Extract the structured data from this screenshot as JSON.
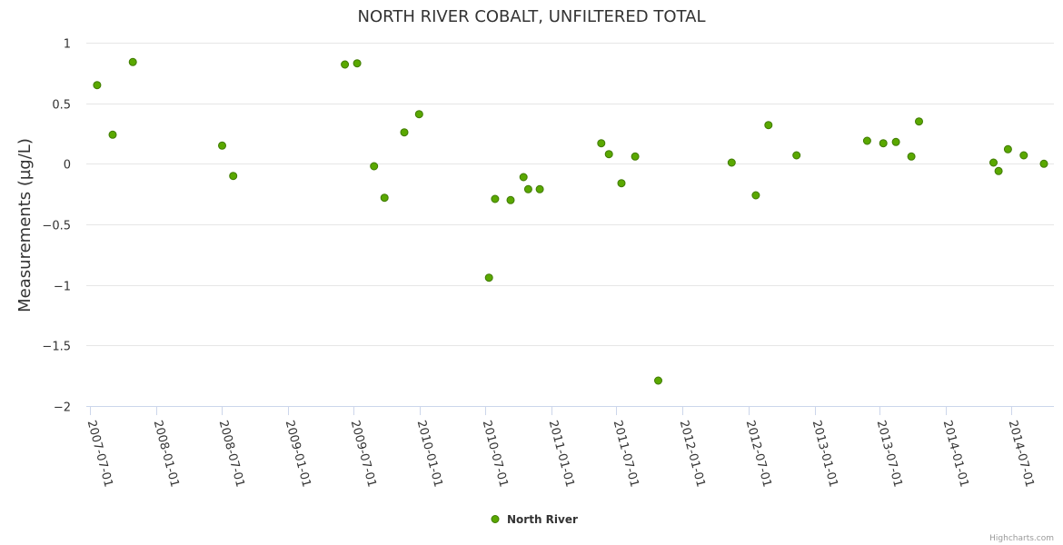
{
  "chart_data": {
    "type": "scatter",
    "title": "NORTH RIVER COBALT, UNFILTERED TOTAL",
    "xlabel": "",
    "ylabel": "Measurements (µg/L)",
    "ylim": [
      -2,
      1
    ],
    "yticks": [
      {
        "value": 1,
        "label": "1"
      },
      {
        "value": 0.5,
        "label": "0.5"
      },
      {
        "value": 0,
        "label": "0"
      },
      {
        "value": -0.5,
        "label": "−0.5"
      },
      {
        "value": -1,
        "label": "−1"
      },
      {
        "value": -1.5,
        "label": "−1.5"
      },
      {
        "value": -2,
        "label": "−2"
      }
    ],
    "xlim": [
      "2007-06-25",
      "2014-09-30"
    ],
    "xticks": [
      {
        "date": "2007-07-01",
        "label": "2007-07-01"
      },
      {
        "date": "2008-01-01",
        "label": "2008-01-01"
      },
      {
        "date": "2008-07-01",
        "label": "2008-07-01"
      },
      {
        "date": "2009-01-01",
        "label": "2009-01-01"
      },
      {
        "date": "2009-07-01",
        "label": "2009-07-01"
      },
      {
        "date": "2010-01-01",
        "label": "2010-01-01"
      },
      {
        "date": "2010-07-01",
        "label": "2010-07-01"
      },
      {
        "date": "2011-01-01",
        "label": "2011-01-01"
      },
      {
        "date": "2011-07-01",
        "label": "2011-07-01"
      },
      {
        "date": "2012-01-01",
        "label": "2012-01-01"
      },
      {
        "date": "2012-07-01",
        "label": "2012-07-01"
      },
      {
        "date": "2013-01-01",
        "label": "2013-01-01"
      },
      {
        "date": "2013-07-01",
        "label": "2013-07-01"
      },
      {
        "date": "2014-01-01",
        "label": "2014-01-01"
      },
      {
        "date": "2014-07-01",
        "label": "2014-07-01"
      }
    ],
    "series": [
      {
        "name": "North River",
        "color": "#5aa800",
        "points": [
          {
            "x": "2007-07-20",
            "y": 0.65
          },
          {
            "x": "2007-09-01",
            "y": 0.24
          },
          {
            "x": "2007-10-27",
            "y": 0.84
          },
          {
            "x": "2008-07-01",
            "y": 0.15
          },
          {
            "x": "2008-08-01",
            "y": -0.1
          },
          {
            "x": "2009-06-07",
            "y": 0.82
          },
          {
            "x": "2009-07-11",
            "y": 0.83
          },
          {
            "x": "2009-08-27",
            "y": -0.02
          },
          {
            "x": "2009-09-25",
            "y": -0.28
          },
          {
            "x": "2009-11-19",
            "y": 0.26
          },
          {
            "x": "2009-12-30",
            "y": 0.41
          },
          {
            "x": "2010-07-12",
            "y": -0.94
          },
          {
            "x": "2010-07-29",
            "y": -0.29
          },
          {
            "x": "2010-09-10",
            "y": -0.3
          },
          {
            "x": "2010-10-16",
            "y": -0.11
          },
          {
            "x": "2010-10-29",
            "y": -0.21
          },
          {
            "x": "2010-11-30",
            "y": -0.21
          },
          {
            "x": "2011-05-20",
            "y": 0.17
          },
          {
            "x": "2011-06-10",
            "y": 0.08
          },
          {
            "x": "2011-07-15",
            "y": -0.16
          },
          {
            "x": "2011-08-22",
            "y": 0.06
          },
          {
            "x": "2011-10-25",
            "y": -1.79
          },
          {
            "x": "2012-05-16",
            "y": 0.01
          },
          {
            "x": "2012-07-22",
            "y": -0.26
          },
          {
            "x": "2012-08-26",
            "y": 0.32
          },
          {
            "x": "2012-11-12",
            "y": 0.07
          },
          {
            "x": "2013-05-27",
            "y": 0.19
          },
          {
            "x": "2013-07-11",
            "y": 0.17
          },
          {
            "x": "2013-08-15",
            "y": 0.18
          },
          {
            "x": "2013-09-27",
            "y": 0.06
          },
          {
            "x": "2013-10-18",
            "y": 0.35
          },
          {
            "x": "2014-05-13",
            "y": 0.01
          },
          {
            "x": "2014-05-27",
            "y": -0.06
          },
          {
            "x": "2014-06-22",
            "y": 0.12
          },
          {
            "x": "2014-08-05",
            "y": 0.07
          },
          {
            "x": "2014-09-30",
            "y": 0.0
          }
        ]
      }
    ]
  },
  "legend": {
    "label": "North River"
  },
  "credits": {
    "label": "Highcharts.com"
  }
}
